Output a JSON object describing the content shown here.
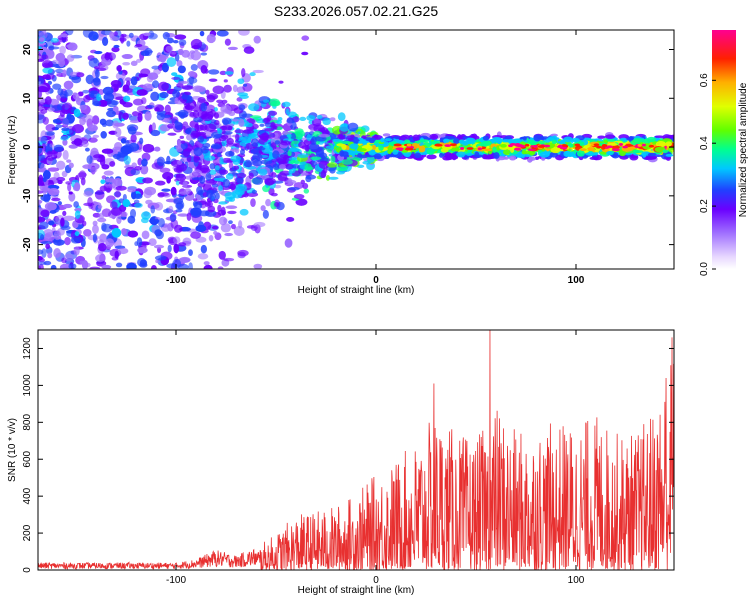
{
  "title": "S233.2026.057.02.21.G25",
  "chart_data": [
    {
      "type": "heatmap",
      "xlabel": "Height of straight line (km)",
      "ylabel": "Frequency (Hz)",
      "xlim": [
        -169,
        149
      ],
      "ylim": [
        -25,
        24
      ],
      "x_ticks": [
        -100,
        0,
        100
      ],
      "x_tick_labels": [
        "-100",
        "0",
        "100"
      ],
      "y_ticks": [
        -20,
        -10,
        0,
        10,
        20
      ],
      "y_tick_labels": [
        "-20",
        "-10",
        "0",
        "10",
        "20"
      ],
      "colorbar": {
        "label": "Normalized spectral amplitude",
        "range": [
          0.0,
          0.76
        ],
        "ticks": [
          0.0,
          0.2,
          0.4,
          0.6
        ],
        "tick_labels": [
          "0.0",
          "0.2",
          "0.4",
          "0.6"
        ],
        "colormap": [
          "#e8d8ff",
          "#a070ff",
          "#6a00ff",
          "#2040ff",
          "#00c8ff",
          "#00ff90",
          "#60ff00",
          "#e0ff00",
          "#ffb000",
          "#ff2000",
          "#ff0090"
        ]
      },
      "description_regions": {
        "noise_band": {
          "x_range": [
            -169,
            -60
          ],
          "freq_range": [
            -25,
            24
          ],
          "amplitude": 0.12
        },
        "signal_band": {
          "x_range": [
            -60,
            149
          ],
          "freq_center": 0,
          "amplitude_peak": 0.75
        }
      }
    },
    {
      "type": "line",
      "xlabel": "Height of straight line (km)",
      "ylabel": "SNR (10 * v/v)",
      "xlim": [
        -169,
        149
      ],
      "ylim": [
        0,
        1300
      ],
      "x_ticks": [
        -100,
        0,
        100
      ],
      "x_tick_labels": [
        "-100",
        "0",
        "100"
      ],
      "y_ticks": [
        0,
        200,
        400,
        600,
        800,
        1000,
        1200
      ],
      "y_tick_labels": [
        "0",
        "200",
        "400",
        "600",
        "800",
        "1000",
        "1200"
      ],
      "color": "#e83030",
      "envelope": {
        "x": [
          -169,
          -100,
          -90,
          -80,
          -70,
          -60,
          -50,
          -40,
          -30,
          -20,
          -10,
          0,
          10,
          20,
          30,
          40,
          50,
          60,
          70,
          80,
          90,
          100,
          110,
          120,
          130,
          140,
          149
        ],
        "y": [
          40,
          40,
          60,
          110,
          80,
          120,
          200,
          300,
          320,
          350,
          420,
          520,
          600,
          700,
          850,
          750,
          700,
          900,
          750,
          780,
          800,
          800,
          850,
          750,
          750,
          900,
          1250
        ]
      },
      "peaks": [
        {
          "x": 29,
          "y": 1010
        },
        {
          "x": 57,
          "y": 1300
        },
        {
          "x": 145,
          "y": 1040
        },
        {
          "x": 148,
          "y": 1260
        }
      ]
    }
  ]
}
